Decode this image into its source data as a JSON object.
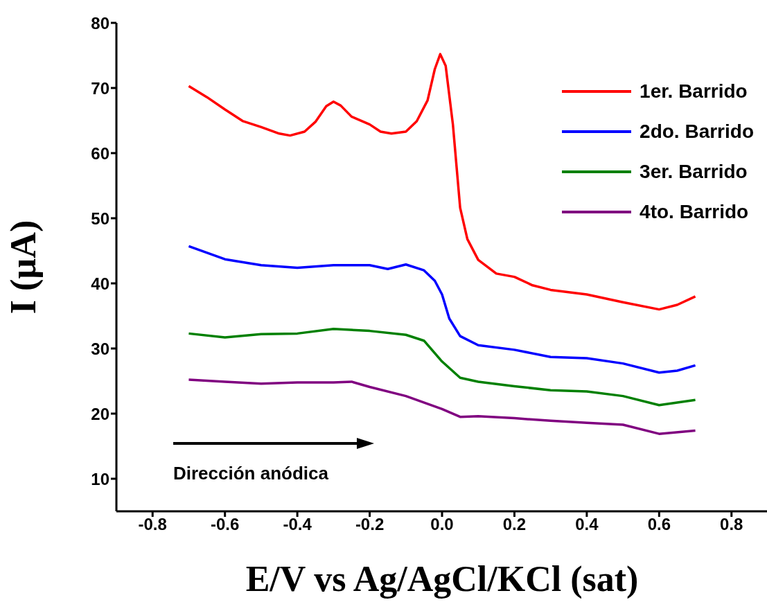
{
  "chart_data": {
    "type": "line",
    "xlabel": "E/V vs Ag/AgCl/KCl (sat)",
    "ylabel": "I (µA)",
    "xlim": [
      -0.9,
      0.9
    ],
    "ylim": [
      5,
      80
    ],
    "xticks": [
      {
        "value": -0.8,
        "label": "-0.8"
      },
      {
        "value": -0.6,
        "label": "-0.6"
      },
      {
        "value": -0.4,
        "label": "-0.4"
      },
      {
        "value": -0.2,
        "label": "-0.2"
      },
      {
        "value": 0,
        "label": "0.0"
      },
      {
        "value": 0.2,
        "label": "0.2"
      },
      {
        "value": 0.4,
        "label": "0.4"
      },
      {
        "value": 0.6,
        "label": "0.6"
      },
      {
        "value": 0.8,
        "label": "0.8"
      }
    ],
    "yticks": [
      10,
      20,
      30,
      40,
      50,
      60,
      70,
      80
    ],
    "grid": false,
    "legend": "top right",
    "marker": "none",
    "line_style": "solid",
    "annotations": [
      "Dirección anódica"
    ],
    "series": [
      {
        "name": "1er. Barrido",
        "color": "#ff0000",
        "x": [
          -0.7,
          -0.65,
          -0.6,
          -0.55,
          -0.5,
          -0.45,
          -0.42,
          -0.38,
          -0.35,
          -0.32,
          -0.3,
          -0.28,
          -0.25,
          -0.2,
          -0.17,
          -0.14,
          -0.1,
          -0.07,
          -0.04,
          -0.02,
          -0.005,
          0.01,
          0.03,
          0.05,
          0.07,
          0.1,
          0.15,
          0.2,
          0.25,
          0.3,
          0.4,
          0.5,
          0.6,
          0.65,
          0.7
        ],
        "values": [
          70.3,
          68.6,
          66.7,
          64.9,
          64.0,
          63.0,
          62.7,
          63.3,
          64.8,
          67.2,
          67.9,
          67.3,
          65.6,
          64.4,
          63.3,
          63.0,
          63.3,
          64.9,
          68.1,
          72.9,
          75.2,
          73.4,
          64.4,
          51.6,
          46.8,
          43.6,
          41.5,
          41.0,
          39.7,
          39.0,
          38.3,
          37.1,
          36.0,
          36.7,
          38.0
        ]
      },
      {
        "name": "2do. Barrido",
        "color": "#0000ff",
        "x": [
          -0.7,
          -0.6,
          -0.5,
          -0.4,
          -0.3,
          -0.2,
          -0.15,
          -0.1,
          -0.05,
          -0.02,
          0,
          0.02,
          0.05,
          0.1,
          0.2,
          0.3,
          0.4,
          0.5,
          0.6,
          0.65,
          0.7
        ],
        "values": [
          45.7,
          43.7,
          42.8,
          42.4,
          42.8,
          42.8,
          42.2,
          42.9,
          42.0,
          40.4,
          38.3,
          34.6,
          31.9,
          30.5,
          29.8,
          28.7,
          28.5,
          27.7,
          26.3,
          26.6,
          27.4
        ]
      },
      {
        "name": "3er. Barrido",
        "color": "#008000",
        "x": [
          -0.7,
          -0.6,
          -0.5,
          -0.4,
          -0.3,
          -0.2,
          -0.1,
          -0.05,
          0,
          0.05,
          0.1,
          0.2,
          0.3,
          0.4,
          0.5,
          0.6,
          0.7
        ],
        "values": [
          32.3,
          31.7,
          32.2,
          32.3,
          33.0,
          32.7,
          32.1,
          31.2,
          28.0,
          25.5,
          24.9,
          24.2,
          23.6,
          23.4,
          22.7,
          21.3,
          22.1
        ]
      },
      {
        "name": "4to. Barrido",
        "color": "#800080",
        "x": [
          -0.7,
          -0.6,
          -0.5,
          -0.4,
          -0.3,
          -0.25,
          -0.2,
          -0.1,
          0,
          0.05,
          0.1,
          0.2,
          0.3,
          0.4,
          0.5,
          0.6,
          0.7
        ],
        "values": [
          25.2,
          24.9,
          24.6,
          24.8,
          24.8,
          24.9,
          24.1,
          22.7,
          20.7,
          19.5,
          19.6,
          19.3,
          18.9,
          18.6,
          18.3,
          16.9,
          17.4
        ]
      }
    ]
  }
}
